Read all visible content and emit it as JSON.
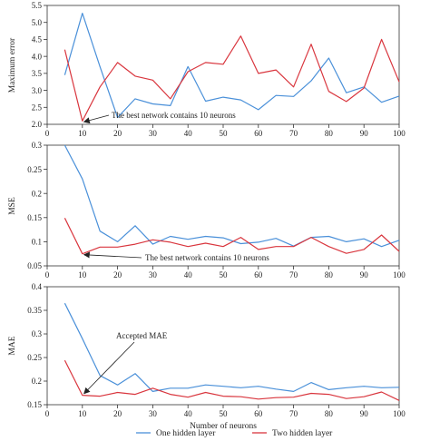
{
  "colors": {
    "one_hidden": "#4a90d9",
    "two_hidden": "#d9363e",
    "axis": "#333333",
    "text": "#222222"
  },
  "legend": {
    "entries": [
      "One hidden layer",
      "Two hidden layer"
    ],
    "placement": "bottom-center"
  },
  "chart_data": [
    {
      "type": "line",
      "title": "",
      "xlabel": "",
      "ylabel": "Maximum error",
      "xlim": [
        0,
        100
      ],
      "ylim": [
        2.0,
        5.5
      ],
      "xticks": [
        0,
        10,
        20,
        30,
        40,
        50,
        60,
        70,
        80,
        90,
        100
      ],
      "yticks": [
        2.0,
        2.5,
        3.0,
        3.5,
        4.0,
        4.5,
        5.0,
        5.5
      ],
      "ytick_labels": [
        "2.0",
        "2.5",
        "3.0",
        "3.5",
        "4.0",
        "4.5",
        "5.0",
        "5.5"
      ],
      "x": [
        5,
        10,
        15,
        20,
        25,
        30,
        35,
        40,
        45,
        50,
        55,
        60,
        65,
        70,
        75,
        80,
        85,
        90,
        95,
        100
      ],
      "series": [
        {
          "name": "One hidden layer",
          "values": [
            3.45,
            5.27,
            3.7,
            2.2,
            2.75,
            2.6,
            2.55,
            3.7,
            2.68,
            2.8,
            2.72,
            2.43,
            2.85,
            2.82,
            3.28,
            3.95,
            2.93,
            3.1,
            2.65,
            2.83
          ]
        },
        {
          "name": "Two hidden layer",
          "values": [
            4.2,
            2.1,
            3.1,
            3.82,
            3.42,
            3.3,
            2.75,
            3.55,
            3.82,
            3.77,
            4.6,
            3.5,
            3.6,
            3.1,
            4.36,
            2.97,
            2.67,
            3.07,
            4.5,
            3.25
          ]
        }
      ],
      "annotation": {
        "text": "The best network contains 10 neurons",
        "x": 10,
        "y": 2.1
      }
    },
    {
      "type": "line",
      "title": "",
      "xlabel": "",
      "ylabel": "MSE",
      "xlim": [
        0,
        100
      ],
      "ylim": [
        0.05,
        0.3
      ],
      "xticks": [
        0,
        10,
        20,
        30,
        40,
        50,
        60,
        70,
        80,
        90,
        100
      ],
      "yticks": [
        0.05,
        0.1,
        0.15,
        0.2,
        0.25,
        0.3
      ],
      "ytick_labels": [
        "0.05",
        "0.1",
        "0.15",
        "0.2",
        "0.25",
        "0.3"
      ],
      "x": [
        5,
        10,
        15,
        20,
        25,
        30,
        35,
        40,
        45,
        50,
        55,
        60,
        65,
        70,
        75,
        80,
        85,
        90,
        95,
        100
      ],
      "series": [
        {
          "name": "One hidden layer",
          "values": [
            0.3,
            0.23,
            0.122,
            0.1,
            0.133,
            0.095,
            0.111,
            0.105,
            0.111,
            0.108,
            0.096,
            0.099,
            0.107,
            0.091,
            0.109,
            0.111,
            0.1,
            0.106,
            0.09,
            0.103
          ]
        },
        {
          "name": "Two hidden layer",
          "values": [
            0.149,
            0.075,
            0.089,
            0.089,
            0.095,
            0.104,
            0.099,
            0.09,
            0.097,
            0.09,
            0.109,
            0.084,
            0.09,
            0.09,
            0.109,
            0.09,
            0.076,
            0.084,
            0.114,
            0.08
          ]
        }
      ],
      "annotation": {
        "text": "The best network contains 10 neurons",
        "x": 10,
        "y": 0.075
      }
    },
    {
      "type": "line",
      "title": "",
      "xlabel": "Number of neurons",
      "ylabel": "MAE",
      "xlim": [
        0,
        100
      ],
      "ylim": [
        0.15,
        0.4
      ],
      "xticks": [
        0,
        10,
        20,
        30,
        40,
        50,
        60,
        70,
        80,
        90,
        100
      ],
      "yticks": [
        0.15,
        0.2,
        0.25,
        0.3,
        0.35,
        0.4
      ],
      "ytick_labels": [
        "0.15",
        "0.2",
        "0.25",
        "0.3",
        "0.35",
        "0.4"
      ],
      "x": [
        5,
        10,
        15,
        20,
        25,
        30,
        35,
        40,
        45,
        50,
        55,
        60,
        65,
        70,
        75,
        80,
        85,
        90,
        95,
        100
      ],
      "series": [
        {
          "name": "One hidden layer",
          "values": [
            0.365,
            0.29,
            0.212,
            0.192,
            0.216,
            0.178,
            0.185,
            0.185,
            0.192,
            0.189,
            0.186,
            0.189,
            0.183,
            0.178,
            0.197,
            0.182,
            0.186,
            0.189,
            0.186,
            0.187
          ]
        },
        {
          "name": "Two hidden layer",
          "values": [
            0.244,
            0.17,
            0.168,
            0.176,
            0.172,
            0.185,
            0.172,
            0.166,
            0.176,
            0.168,
            0.167,
            0.162,
            0.165,
            0.166,
            0.174,
            0.172,
            0.163,
            0.167,
            0.177,
            0.159
          ]
        }
      ],
      "annotation": {
        "text": "Accepted MAE",
        "x": 10,
        "y": 0.17
      }
    }
  ]
}
